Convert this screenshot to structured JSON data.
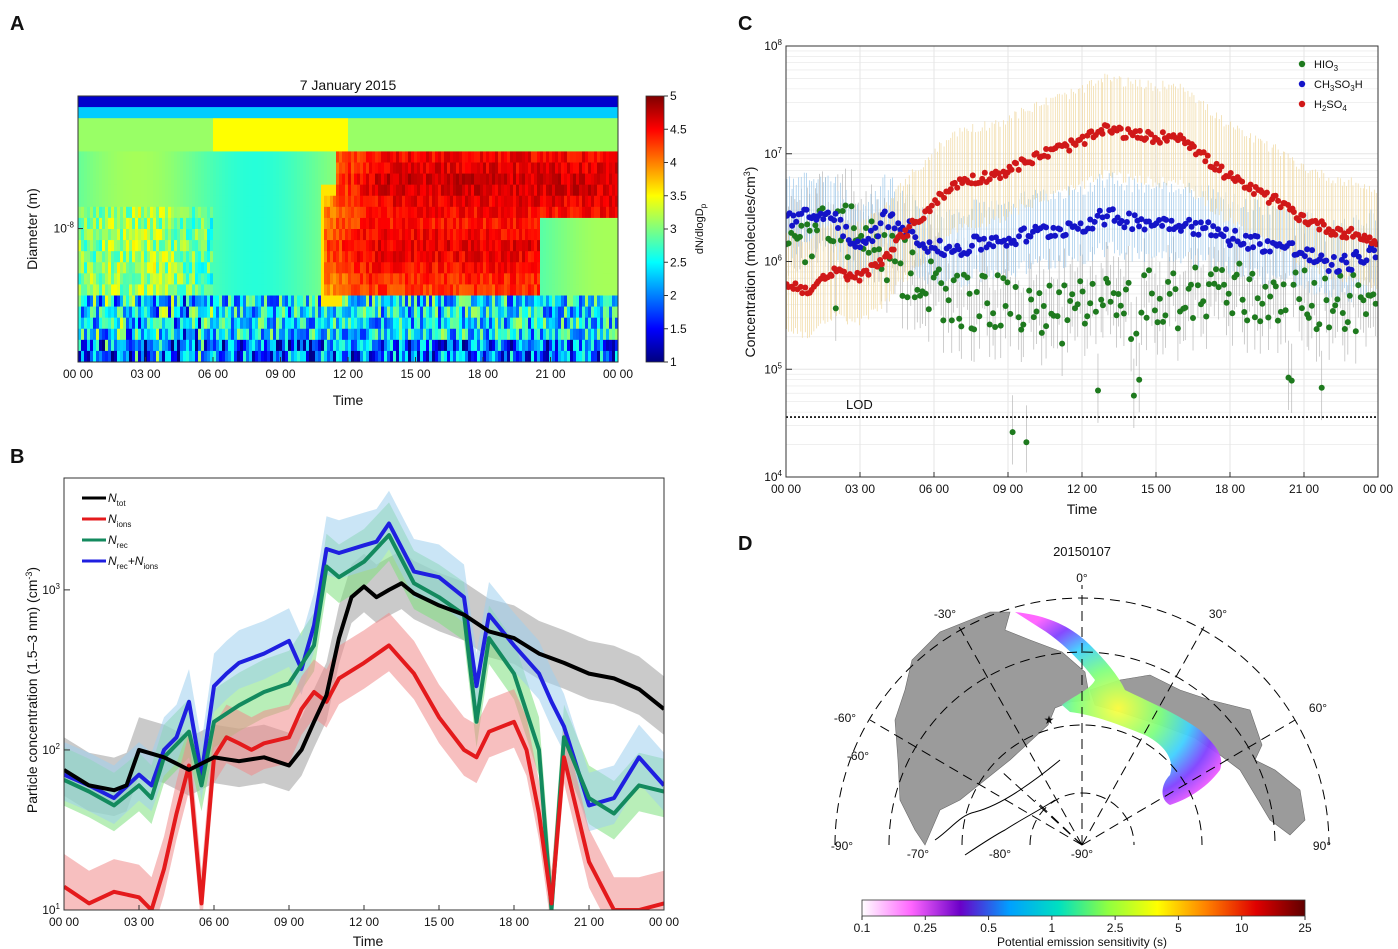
{
  "panels": [
    {
      "id": "A",
      "letter": "A"
    },
    {
      "id": "B",
      "letter": "B"
    },
    {
      "id": "C",
      "letter": "C"
    },
    {
      "id": "D",
      "letter": "D"
    }
  ],
  "chart_data": [
    {
      "panel": "A",
      "type": "heatmap",
      "title": "7 January 2015",
      "xlabel": "Time",
      "ylabel": "Diameter (m)",
      "x_ticks": [
        "00 00",
        "03 00",
        "06 00",
        "09 00",
        "12 00",
        "15 00",
        "18 00",
        "21 00",
        "00 00"
      ],
      "x_range_hours": [
        0,
        24
      ],
      "y_scale": "log",
      "y_tick_labels": [
        {
          "value": 1e-08,
          "label": "10",
          "sup": "-8"
        }
      ],
      "colorbar": {
        "label": "dN/dlogD",
        "label_sub": "p",
        "range": [
          1,
          5
        ],
        "ticks": [
          "1",
          "1.5",
          "2",
          "2.5",
          "3",
          "3.5",
          "4",
          "4.5",
          "5"
        ],
        "colors": [
          "#00007f",
          "#0000ff",
          "#007fff",
          "#00ffff",
          "#7fff7f",
          "#ffff00",
          "#ff7f00",
          "#ff0000",
          "#7f0000"
        ]
      },
      "bands": [
        {
          "d_lo": 1.3e-08,
          "d_hi": 2.2e-08,
          "start_h": 11.5,
          "end_h": 24,
          "peak": 4.7
        },
        {
          "d_lo": 5e-09,
          "d_hi": 1.3e-08,
          "start_h": 11.0,
          "end_h": 20.5,
          "peak": 4.6
        }
      ]
    },
    {
      "panel": "B",
      "type": "line",
      "xlabel": "Time",
      "ylabel": "Particle concentration (1.5–3 nm) (cm",
      "ylabel_sup": "-3",
      "ylabel_end": ")",
      "x_ticks": [
        "00 00",
        "03 00",
        "06 00",
        "09 00",
        "12 00",
        "15 00",
        "18 00",
        "21 00",
        "00 00"
      ],
      "x_range_hours": [
        0,
        24
      ],
      "y_scale": "log",
      "ylim": [
        10,
        5000
      ],
      "y_tick_labels": [
        {
          "value": 10,
          "label": "10",
          "sup": "1"
        },
        {
          "value": 100,
          "label": "10",
          "sup": "2"
        },
        {
          "value": 1000,
          "label": "10",
          "sup": "3"
        }
      ],
      "legend": {
        "position": "top-left",
        "entries": [
          {
            "main": "N",
            "sub": "tot",
            "color": "#000000"
          },
          {
            "main": "N",
            "sub": "ions",
            "color": "#e41a1c"
          },
          {
            "main": "N",
            "sub": "rec",
            "color": "#138a5e"
          },
          {
            "main": "N",
            "sub": "rec",
            "main2": "+N",
            "sub2": "ions",
            "color": "#1f1fe0"
          }
        ]
      },
      "series": [
        {
          "name": "Ntot",
          "color": "#000000",
          "band": "#9e9e9e",
          "x": [
            0,
            1,
            2,
            2.5,
            3,
            4,
            5,
            6,
            7,
            8,
            9,
            9.5,
            10,
            10.5,
            11,
            11.5,
            12,
            12.5,
            13,
            13.5,
            14,
            15,
            16,
            17,
            18,
            19,
            20,
            21,
            22,
            23,
            24
          ],
          "y": [
            75,
            60,
            56,
            60,
            100,
            90,
            75,
            90,
            85,
            90,
            80,
            100,
            150,
            220,
            500,
            900,
            1050,
            900,
            1000,
            1100,
            950,
            800,
            700,
            550,
            500,
            400,
            350,
            300,
            280,
            240,
            180
          ]
        },
        {
          "name": "Nions",
          "color": "#e41a1c",
          "band": "#f08a8a",
          "x": [
            0,
            1,
            2,
            3,
            3.5,
            4,
            4.5,
            5,
            5.5,
            6,
            6.5,
            7,
            7.5,
            8,
            9,
            9.5,
            10,
            10.5,
            11,
            12,
            13,
            14,
            15,
            16,
            16.5,
            17,
            18,
            18.5,
            19,
            19.5,
            20,
            21,
            22,
            23,
            24
          ],
          "y": [
            14,
            11,
            13,
            12,
            10,
            18,
            40,
            80,
            11,
            90,
            120,
            110,
            100,
            110,
            120,
            180,
            230,
            200,
            280,
            350,
            450,
            300,
            160,
            100,
            90,
            130,
            150,
            100,
            40,
            11,
            90,
            20,
            10,
            10,
            11
          ]
        },
        {
          "name": "Nrec",
          "color": "#138a5e",
          "band": "#7ee07e",
          "x": [
            0,
            1,
            2,
            3,
            3.5,
            4,
            5,
            5.5,
            6,
            7,
            8,
            9,
            10,
            10.5,
            11,
            12,
            13,
            14,
            15,
            16,
            16.5,
            17,
            18,
            19,
            19.5,
            20,
            21,
            22,
            23,
            24
          ],
          "y": [
            65,
            55,
            45,
            60,
            50,
            90,
            130,
            60,
            150,
            190,
            230,
            260,
            450,
            1400,
            1200,
            1500,
            2200,
            1100,
            900,
            700,
            150,
            500,
            300,
            100,
            10,
            120,
            50,
            40,
            60,
            55
          ]
        },
        {
          "name": "Nrec+Nions",
          "color": "#1f1fe0",
          "band": "#9ecfee",
          "x": [
            0,
            1,
            2,
            3,
            3.5,
            4,
            4.5,
            5,
            5.5,
            6,
            6.5,
            7,
            8,
            9,
            9.5,
            10,
            10.5,
            11,
            12,
            12.5,
            13,
            14,
            15,
            16,
            16.5,
            17,
            18,
            19,
            19.5,
            20,
            21,
            22,
            23,
            24
          ],
          "y": [
            70,
            60,
            50,
            70,
            60,
            100,
            120,
            200,
            70,
            250,
            300,
            350,
            400,
            480,
            320,
            600,
            1800,
            1700,
            1900,
            2000,
            2600,
            1300,
            1200,
            900,
            250,
            700,
            450,
            300,
            200,
            140,
            45,
            50,
            90,
            60
          ]
        }
      ]
    },
    {
      "panel": "C",
      "type": "scatter",
      "xlabel": "Time",
      "ylabel": "Concentration (molecules/cm",
      "ylabel_sup": "3",
      "ylabel_end": ")",
      "x_ticks": [
        "00 00",
        "03 00",
        "06 00",
        "09 00",
        "12 00",
        "15 00",
        "18 00",
        "21 00",
        "00 00"
      ],
      "x_range_hours": [
        0,
        24
      ],
      "y_scale": "log",
      "ylim": [
        10000,
        100000000
      ],
      "y_tick_labels": [
        {
          "value": 10000,
          "label": "10",
          "sup": "4"
        },
        {
          "value": 100000,
          "label": "10",
          "sup": "5"
        },
        {
          "value": 1000000,
          "label": "10",
          "sup": "6"
        },
        {
          "value": 10000000,
          "label": "10",
          "sup": "7"
        },
        {
          "value": 100000000,
          "label": "10",
          "sup": "8"
        }
      ],
      "lod": {
        "label": "LOD",
        "value": 36000
      },
      "legend": {
        "position": "top-right",
        "entries": [
          {
            "parts": [
              "HIO",
              "3"
            ],
            "color": "#1e7a1e"
          },
          {
            "parts": [
              "CH",
              "3",
              "SO",
              "3",
              "H"
            ],
            "color": "#1414c8"
          },
          {
            "parts": [
              "H",
              "2",
              "SO",
              "4"
            ],
            "color": "#d01818"
          }
        ]
      },
      "series": [
        {
          "name": "HIO3",
          "color": "#1e7a1e",
          "x": [
            0,
            1,
            2,
            3,
            4,
            5,
            6,
            7,
            8,
            9,
            10,
            11,
            12,
            13,
            14,
            15,
            16,
            17,
            18,
            19,
            20,
            21,
            22,
            23,
            24
          ],
          "y": [
            1600000,
            1800000,
            2200000,
            1600000,
            1000000,
            800000,
            600000,
            450000,
            400000,
            420000,
            350000,
            300000,
            400000,
            380000,
            350000,
            500000,
            420000,
            550000,
            600000,
            450000,
            500000,
            480000,
            450000,
            420000,
            400000
          ]
        },
        {
          "name": "CH3SO3H",
          "color": "#1414c8",
          "x": [
            0,
            1,
            2,
            3,
            4,
            5,
            6,
            7,
            8,
            9,
            10,
            11,
            12,
            13,
            14,
            15,
            16,
            17,
            18,
            19,
            20,
            21,
            22,
            23,
            24
          ],
          "y": [
            2500000,
            2600000,
            2600000,
            1200000,
            2500000,
            2000000,
            1300000,
            1300000,
            1500000,
            1600000,
            1800000,
            2000000,
            2200000,
            2600000,
            2400000,
            2300000,
            2300000,
            2000000,
            1700000,
            1500000,
            1400000,
            1200000,
            900000,
            1000000,
            1300000
          ]
        },
        {
          "name": "H2SO4",
          "color": "#d01818",
          "x": [
            0,
            1,
            2,
            3,
            4,
            5,
            6,
            7,
            8,
            9,
            10,
            11,
            12,
            13,
            14,
            15,
            16,
            17,
            18,
            19,
            20,
            21,
            22,
            23,
            24
          ],
          "y": [
            600000,
            550000,
            800000,
            700000,
            1100000,
            2000000,
            3500000,
            5500000,
            6000000,
            7000000,
            9000000,
            11000000,
            13000000,
            17000000,
            15000000,
            14000000,
            15000000,
            9000000,
            6000000,
            4500000,
            3500000,
            2500000,
            2000000,
            1800000,
            1500000
          ]
        }
      ]
    },
    {
      "panel": "D",
      "type": "map",
      "title": "20150107",
      "lon_labels": [
        "0°",
        "-30°",
        "30°",
        "-60°",
        "60°",
        "-60°",
        "-90°",
        "90°",
        "-70°",
        "-80°",
        "-90°"
      ],
      "colorbar": {
        "label": "Potential emission sensitivity (s)",
        "ticks": [
          "0.1",
          "0.25",
          "0.5",
          "1",
          "2.5",
          "5",
          "10",
          "25"
        ],
        "colors": [
          "#ffffff",
          "#ff66ff",
          "#6a00c8",
          "#00a0ff",
          "#00e0c0",
          "#90ff40",
          "#ffff00",
          "#ff8000",
          "#e00000",
          "#600000"
        ]
      }
    }
  ]
}
